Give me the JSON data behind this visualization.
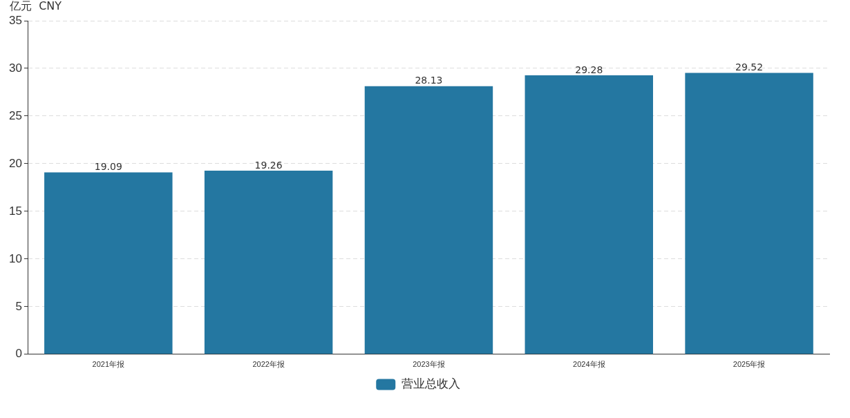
{
  "chart_data": {
    "type": "bar",
    "ylabel": "亿元  CNY",
    "categories": [
      "2021年报",
      "2022年报",
      "2023年报",
      "2024年报",
      "2025年报"
    ],
    "series": [
      {
        "name": "营业总收入",
        "color": "#2477a1",
        "values": [
          19.09,
          19.26,
          28.13,
          29.28,
          29.52
        ]
      }
    ],
    "ylim": [
      0,
      35
    ],
    "yticks": [
      0,
      5,
      10,
      15,
      20,
      25,
      30,
      35
    ],
    "grid": "y",
    "legend": "bottom",
    "data_labels": true
  }
}
